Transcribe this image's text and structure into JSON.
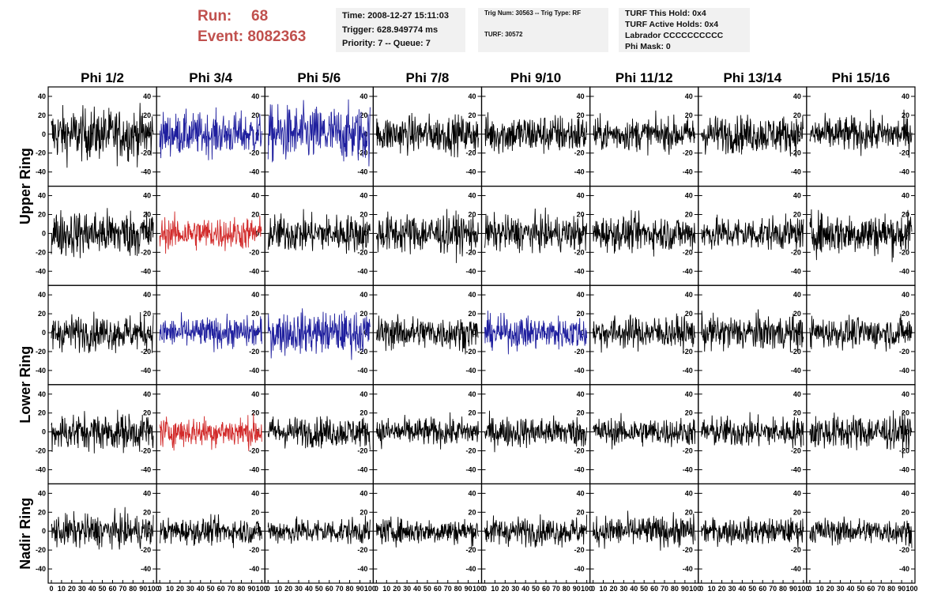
{
  "header": {
    "run_label": "Run:",
    "run_value": "68",
    "event_label": "Event:",
    "event_value": "8082363"
  },
  "info_time": {
    "time": "Time: 2008-12-27 15:11:03",
    "trigger": "Trigger: 628.949774 ms",
    "priority": "Priority: 7 -- Queue: 7"
  },
  "info_trig": {
    "trig": "Trig Num: 30563 -- Trig Type: RF",
    "turf": "TURF: 30572"
  },
  "info_turf": {
    "this_hold": "TURF This Hold: 0x4",
    "active_holds": "TURF Active Holds: 0x4",
    "labrador": "Labrador CCCCCCCCCC",
    "phi_mask": "Phi Mask: 0"
  },
  "colors": {
    "normal": "#000000",
    "blue": "#1f1f9e",
    "red": "#d22b2b"
  },
  "chart_data": {
    "type": "line",
    "columns": [
      "Phi 1/2",
      "Phi 3/4",
      "Phi 5/6",
      "Phi 7/8",
      "Phi 9/10",
      "Phi 11/12",
      "Phi 13/14",
      "Phi 15/16"
    ],
    "row_groups": [
      "Upper Ring",
      "Lower Ring",
      "Nadir Ring"
    ],
    "ylim": [
      -55,
      50
    ],
    "yticks": [
      40,
      20,
      0,
      -20,
      -40
    ],
    "xlim": [
      0,
      100
    ],
    "xticks": [
      0,
      10,
      20,
      30,
      40,
      50,
      60,
      70,
      80,
      90,
      100
    ],
    "samples": 260,
    "traces": [
      [
        "normal",
        "blue",
        "blue",
        "normal",
        "normal",
        "normal",
        "normal",
        "normal"
      ],
      [
        "normal",
        "red",
        "normal",
        "normal",
        "normal",
        "normal",
        "normal",
        "normal"
      ],
      [
        "normal",
        "blue",
        "blue",
        "normal",
        "blue",
        "normal",
        "normal",
        "normal"
      ],
      [
        "normal",
        "red",
        "normal",
        "normal",
        "normal",
        "normal",
        "normal",
        "normal"
      ],
      [
        "normal",
        "normal",
        "normal",
        "normal",
        "normal",
        "normal",
        "normal",
        "normal"
      ]
    ],
    "amplitudes": [
      [
        22,
        18,
        24,
        16,
        17,
        14,
        16,
        15
      ],
      [
        20,
        14,
        16,
        17,
        15,
        15,
        14,
        18
      ],
      [
        15,
        13,
        18,
        14,
        14,
        14,
        15,
        13
      ],
      [
        16,
        13,
        13,
        12,
        13,
        12,
        13,
        15
      ],
      [
        14,
        11,
        11,
        11,
        12,
        13,
        11,
        11
      ]
    ]
  }
}
